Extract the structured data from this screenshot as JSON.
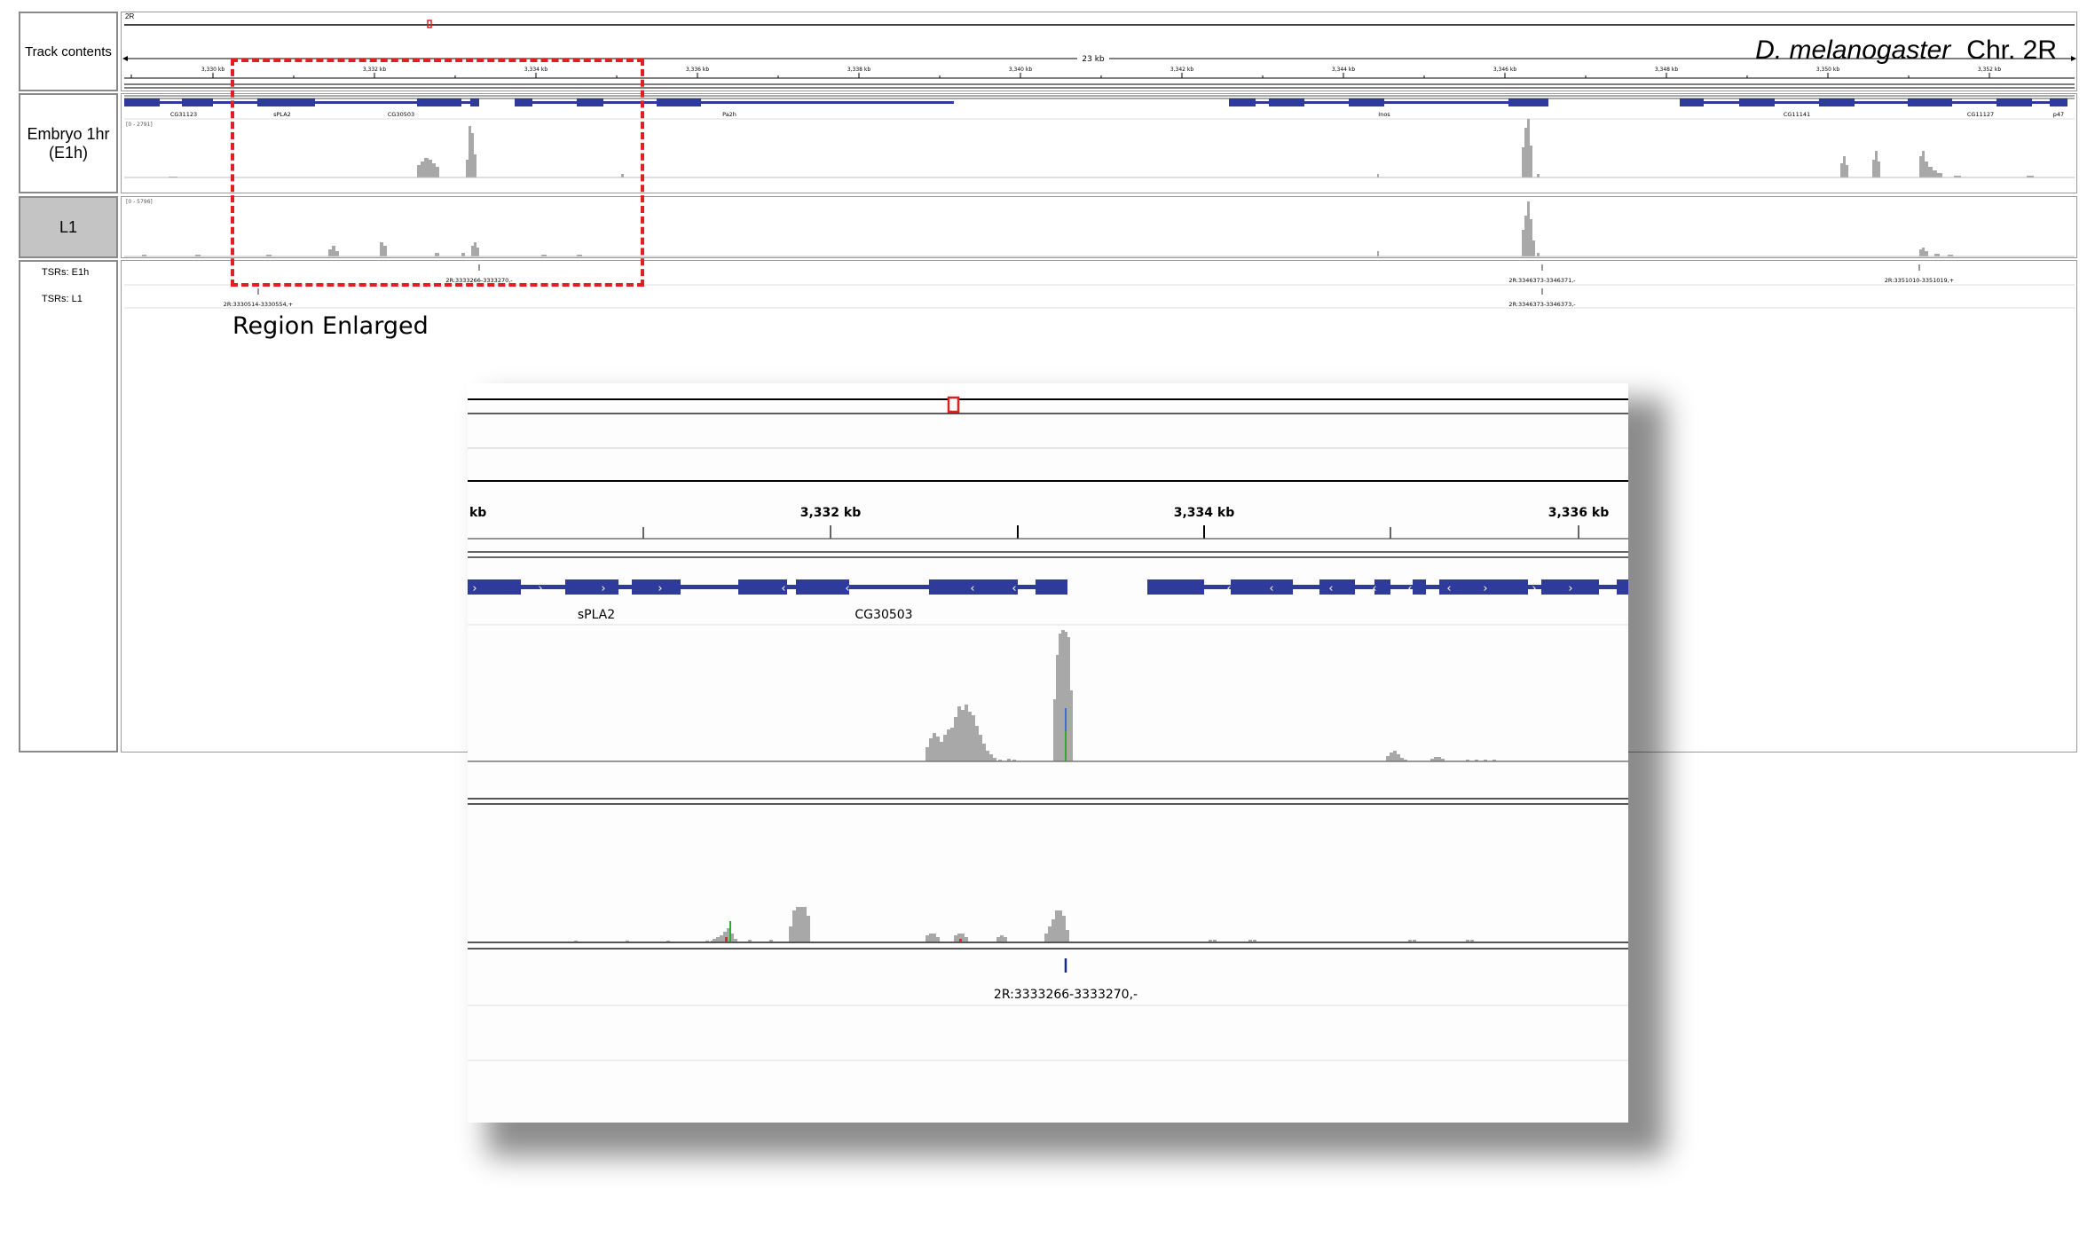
{
  "window": {
    "title_species": "D. melanogaster",
    "title_chrom": "Chr. 2R"
  },
  "tracks": {
    "track_contents": "Track contents",
    "embryo_line1": "Embryo 1hr",
    "embryo_line2": "(E1h)",
    "l1": "L1",
    "tsr_e1h": "TSRs: E1h",
    "tsr_l1": "TSRs: L1"
  },
  "ruler": {
    "chrom": "2R",
    "span": "23 kb",
    "ticks": [
      "3,330 kb",
      "3,332 kb",
      "3,334 kb",
      "3,336 kb",
      "3,338 kb",
      "3,340 kb",
      "3,342 kb",
      "3,344 kb",
      "3,346 kb",
      "3,348 kb",
      "3,350 kb",
      "3,352 kb"
    ]
  },
  "genes": {
    "overview": [
      "CG31123",
      "sPLA2",
      "CG30503",
      "Pa2h",
      "Inos",
      "CG11141",
      "CG11127",
      "p47"
    ]
  },
  "data_ranges": {
    "embryo": "[0 - 2791]",
    "l1": "[0 - 5796]"
  },
  "tsr_labels": {
    "e1h_1": "2R:3333266-3333270,-",
    "e1h_2": "2R:3346373-3346371,-",
    "e1h_3": "2R:3351010-3351019,+",
    "l1_1": "2R:3330514-3330554,+",
    "l1_2": "2R:3346373-3346373,-"
  },
  "annotation": {
    "region_enlarged": "Region Enlarged"
  },
  "zoom": {
    "ticks": [
      "kb",
      "3,332 kb",
      "3,334 kb",
      "3,336 kb"
    ],
    "genes": [
      "sPLA2",
      "CG30503"
    ],
    "tsr_label": "2R:3333266-3333270,-"
  },
  "colors": {
    "gene": "#2e3a9c",
    "coverage": "#a8a8a8",
    "highlight": "#e02020",
    "border": "#8a8a8a"
  }
}
